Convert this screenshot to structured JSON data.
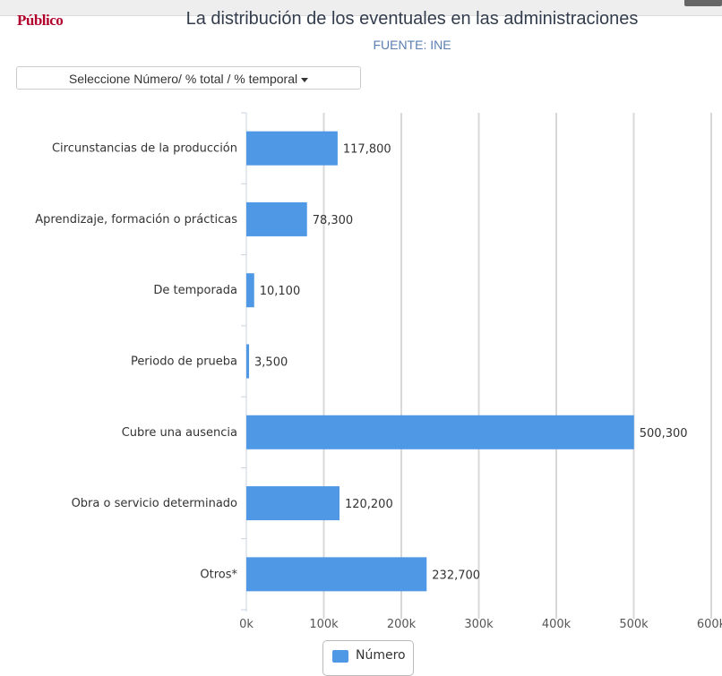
{
  "header": {
    "logo": "Público",
    "title": "La distribución de los eventuales en las administraciones",
    "source": "FUENTE: INE"
  },
  "selector": {
    "label": "Seleccione Número/ % total / % temporal"
  },
  "colors": {
    "bar": "#4f98e6",
    "grid": "#d8d8d8"
  },
  "chart_data": {
    "type": "bar",
    "orientation": "horizontal",
    "title": "La distribución de los eventuales en las administraciones",
    "categories": [
      "Circunstancias de la producción",
      "Aprendizaje, formación o prácticas",
      "De temporada",
      "Periodo de prueba",
      "Cubre una ausencia",
      "Obra o servicio determinado",
      "Otros*"
    ],
    "series": [
      {
        "name": "Número",
        "values": [
          117800,
          78300,
          10100,
          3500,
          500300,
          120200,
          232700
        ]
      }
    ],
    "value_labels": [
      "117,800",
      "78,300",
      "10,100",
      "3,500",
      "500,300",
      "120,200",
      "232,700"
    ],
    "xlim": [
      0,
      600000
    ],
    "xticks": [
      0,
      100000,
      200000,
      300000,
      400000,
      500000,
      600000
    ],
    "xtick_labels": [
      "0k",
      "100k",
      "200k",
      "300k",
      "400k",
      "500k",
      "600k"
    ],
    "grid": true,
    "legend": "bottom-center"
  }
}
